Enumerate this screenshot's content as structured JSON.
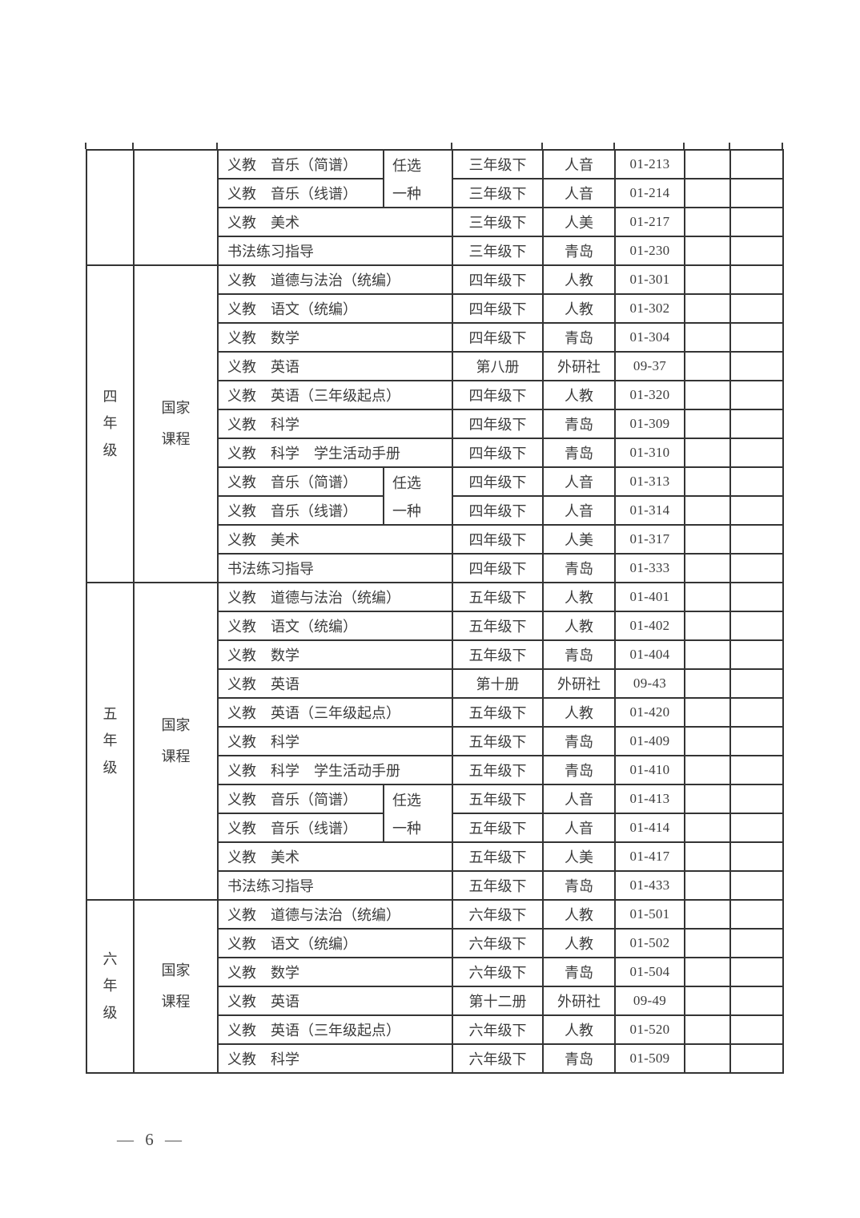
{
  "page": {
    "number_label": "— 6 —"
  },
  "table": {
    "sections": [
      {
        "grade": "",
        "course_type": "",
        "rows": [
          {
            "type": "pair_first",
            "name": "义教　音乐（简谱）",
            "choice": [
              "任选",
              "一种"
            ],
            "volume": "三年级下",
            "publisher": "人音",
            "code": "01-213"
          },
          {
            "type": "pair_second",
            "name": "义教　音乐（线谱）",
            "volume": "三年级下",
            "publisher": "人音",
            "code": "01-214"
          },
          {
            "type": "full",
            "name": "义教　美术",
            "volume": "三年级下",
            "publisher": "人美",
            "code": "01-217"
          },
          {
            "type": "full",
            "name": "书法练习指导",
            "volume": "三年级下",
            "publisher": "青岛",
            "code": "01-230"
          }
        ]
      },
      {
        "grade": "四年级",
        "course_type": "国家课程",
        "rows": [
          {
            "type": "full",
            "name": "义教　道德与法治（统编）",
            "volume": "四年级下",
            "publisher": "人教",
            "code": "01-301"
          },
          {
            "type": "full",
            "name": "义教　语文（统编）",
            "volume": "四年级下",
            "publisher": "人教",
            "code": "01-302"
          },
          {
            "type": "full",
            "name": "义教　数学",
            "volume": "四年级下",
            "publisher": "青岛",
            "code": "01-304"
          },
          {
            "type": "full",
            "name": "义教　英语",
            "volume": "第八册",
            "publisher": "外研社",
            "code": "09-37"
          },
          {
            "type": "full",
            "name": "义教　英语（三年级起点）",
            "volume": "四年级下",
            "publisher": "人教",
            "code": "01-320"
          },
          {
            "type": "full",
            "name": "义教　科学",
            "volume": "四年级下",
            "publisher": "青岛",
            "code": "01-309"
          },
          {
            "type": "full",
            "name": "义教　科学　学生活动手册",
            "volume": "四年级下",
            "publisher": "青岛",
            "code": "01-310"
          },
          {
            "type": "pair_first",
            "name": "义教　音乐（简谱）",
            "choice": [
              "任选",
              "一种"
            ],
            "volume": "四年级下",
            "publisher": "人音",
            "code": "01-313"
          },
          {
            "type": "pair_second",
            "name": "义教　音乐（线谱）",
            "volume": "四年级下",
            "publisher": "人音",
            "code": "01-314"
          },
          {
            "type": "full",
            "name": "义教　美术",
            "volume": "四年级下",
            "publisher": "人美",
            "code": "01-317"
          },
          {
            "type": "full",
            "name": "书法练习指导",
            "volume": "四年级下",
            "publisher": "青岛",
            "code": "01-333"
          }
        ]
      },
      {
        "grade": "五年级",
        "course_type": "国家课程",
        "rows": [
          {
            "type": "full",
            "name": "义教　道德与法治（统编）",
            "volume": "五年级下",
            "publisher": "人教",
            "code": "01-401"
          },
          {
            "type": "full",
            "name": "义教　语文（统编）",
            "volume": "五年级下",
            "publisher": "人教",
            "code": "01-402"
          },
          {
            "type": "full",
            "name": "义教　数学",
            "volume": "五年级下",
            "publisher": "青岛",
            "code": "01-404"
          },
          {
            "type": "full",
            "name": "义教　英语",
            "volume": "第十册",
            "publisher": "外研社",
            "code": "09-43"
          },
          {
            "type": "full",
            "name": "义教　英语（三年级起点）",
            "volume": "五年级下",
            "publisher": "人教",
            "code": "01-420"
          },
          {
            "type": "full",
            "name": "义教　科学",
            "volume": "五年级下",
            "publisher": "青岛",
            "code": "01-409"
          },
          {
            "type": "full",
            "name": "义教　科学　学生活动手册",
            "volume": "五年级下",
            "publisher": "青岛",
            "code": "01-410"
          },
          {
            "type": "pair_first",
            "name": "义教　音乐（简谱）",
            "choice": [
              "任选",
              "一种"
            ],
            "volume": "五年级下",
            "publisher": "人音",
            "code": "01-413"
          },
          {
            "type": "pair_second",
            "name": "义教　音乐（线谱）",
            "volume": "五年级下",
            "publisher": "人音",
            "code": "01-414"
          },
          {
            "type": "full",
            "name": "义教　美术",
            "volume": "五年级下",
            "publisher": "人美",
            "code": "01-417"
          },
          {
            "type": "full",
            "name": "书法练习指导",
            "volume": "五年级下",
            "publisher": "青岛",
            "code": "01-433"
          }
        ]
      },
      {
        "grade": "六年级",
        "course_type": "国家课程",
        "rows": [
          {
            "type": "full",
            "name": "义教　道德与法治（统编）",
            "volume": "六年级下",
            "publisher": "人教",
            "code": "01-501"
          },
          {
            "type": "full",
            "name": "义教　语文（统编）",
            "volume": "六年级下",
            "publisher": "人教",
            "code": "01-502"
          },
          {
            "type": "full",
            "name": "义教　数学",
            "volume": "六年级下",
            "publisher": "青岛",
            "code": "01-504"
          },
          {
            "type": "full",
            "name": "义教　英语",
            "volume": "第十二册",
            "publisher": "外研社",
            "code": "09-49"
          },
          {
            "type": "full",
            "name": "义教　英语（三年级起点）",
            "volume": "六年级下",
            "publisher": "人教",
            "code": "01-520"
          },
          {
            "type": "full",
            "name": "义教　科学",
            "volume": "六年级下",
            "publisher": "青岛",
            "code": "01-509"
          }
        ]
      }
    ]
  }
}
